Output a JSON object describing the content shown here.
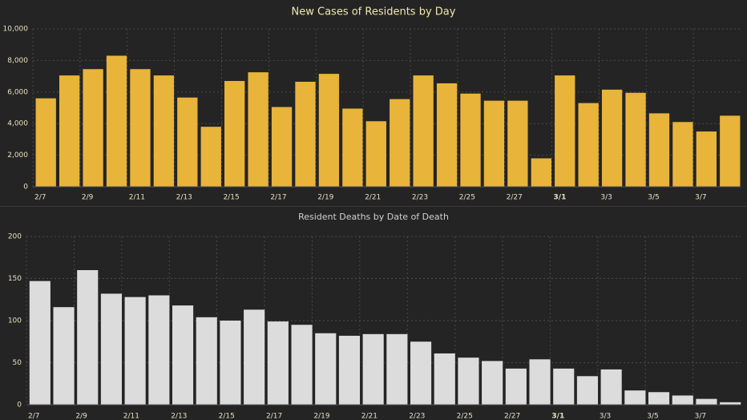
{
  "chart_data": [
    {
      "type": "bar",
      "title": "New Cases of Residents by Day",
      "xlabel": "",
      "ylabel": "",
      "ylim": [
        0,
        10000
      ],
      "y_ticks": [
        "0",
        "2,000",
        "4,000",
        "6,000",
        "8,000",
        "10,000"
      ],
      "y_tick_values": [
        0,
        2000,
        4000,
        6000,
        8000,
        10000
      ],
      "categories": [
        "2/7",
        "2/8",
        "2/9",
        "2/10",
        "2/11",
        "2/12",
        "2/13",
        "2/14",
        "2/15",
        "2/16",
        "2/17",
        "2/18",
        "2/19",
        "2/20",
        "2/21",
        "2/22",
        "2/23",
        "2/24",
        "2/25",
        "2/26",
        "2/27",
        "2/28",
        "3/1",
        "3/2",
        "3/3",
        "3/4",
        "3/5",
        "3/6",
        "3/7",
        "3/8"
      ],
      "x_tick_labels": [
        "2/7",
        "2/9",
        "2/11",
        "2/13",
        "2/15",
        "2/17",
        "2/19",
        "2/21",
        "2/23",
        "2/25",
        "2/27",
        "3/1",
        "3/3",
        "3/5",
        "3/7"
      ],
      "values": [
        5600,
        7050,
        7450,
        8300,
        7450,
        7050,
        5650,
        3800,
        6700,
        7250,
        5050,
        6650,
        7150,
        4950,
        4150,
        5550,
        7050,
        6550,
        5900,
        5450,
        5450,
        1800,
        7050,
        5300,
        6150,
        5950,
        4650,
        4100,
        3500,
        4500
      ],
      "bar_color": "#E8B43A",
      "grid": true
    },
    {
      "type": "bar",
      "title": "Resident Deaths by Date of Death",
      "xlabel": "",
      "ylabel": "",
      "ylim": [
        0,
        200
      ],
      "y_ticks": [
        "0",
        "50",
        "100",
        "150",
        "200"
      ],
      "y_tick_values": [
        0,
        50,
        100,
        150,
        200
      ],
      "categories": [
        "2/7",
        "2/8",
        "2/9",
        "2/10",
        "2/11",
        "2/12",
        "2/13",
        "2/14",
        "2/15",
        "2/16",
        "2/17",
        "2/18",
        "2/19",
        "2/20",
        "2/21",
        "2/22",
        "2/23",
        "2/24",
        "2/25",
        "2/26",
        "2/27",
        "2/28",
        "3/1",
        "3/2",
        "3/3",
        "3/4",
        "3/5",
        "3/6",
        "3/7",
        "3/8"
      ],
      "x_tick_labels": [
        "2/7",
        "2/9",
        "2/11",
        "2/13",
        "2/15",
        "2/17",
        "2/19",
        "2/21",
        "2/23",
        "2/25",
        "2/27",
        "3/1",
        "3/3",
        "3/5",
        "3/7"
      ],
      "values": [
        147,
        116,
        160,
        132,
        128,
        130,
        118,
        104,
        100,
        113,
        99,
        95,
        85,
        82,
        84,
        84,
        75,
        61,
        56,
        52,
        43,
        54,
        43,
        34,
        42,
        17,
        15,
        11,
        7,
        3
      ],
      "bar_color": "#DCDCDC",
      "grid": true
    }
  ],
  "colors": {
    "background": "#242424",
    "title_text": "#F2E6B0",
    "subtitle_text": "#D0D0D0",
    "axis_text": "#E8E0C0",
    "grid": "#4a4a4a"
  }
}
